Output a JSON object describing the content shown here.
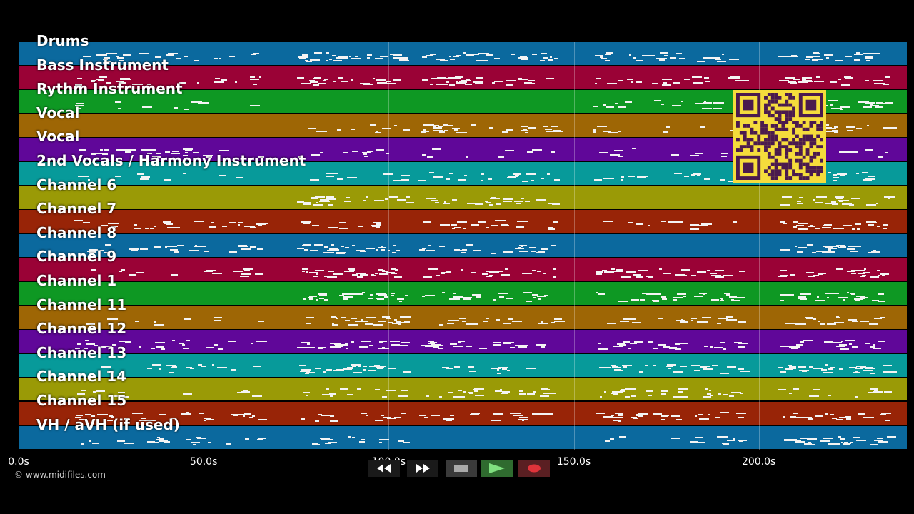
{
  "tracks": [
    {
      "name": "Drums",
      "color": "#0b699e"
    },
    {
      "name": "Bass Instrument",
      "color": "#9a0236"
    },
    {
      "name": "Rythm Instrument",
      "color": "#0e9823"
    },
    {
      "name": "Vocal",
      "color": "#9e6605"
    },
    {
      "name": "Vocal",
      "color": "#600799"
    },
    {
      "name": "2nd Vocals / Harmony Instrument",
      "color": "#079a9a"
    },
    {
      "name": "Channel 6",
      "color": "#9a9a06"
    },
    {
      "name": "Channel 7",
      "color": "#982407"
    },
    {
      "name": "Channel 8",
      "color": "#0b699e"
    },
    {
      "name": "Channel 9",
      "color": "#9a0236"
    },
    {
      "name": "Channel 1",
      "color": "#0e9823"
    },
    {
      "name": "Channel 11",
      "color": "#9e6605"
    },
    {
      "name": "Channel 12",
      "color": "#600799"
    },
    {
      "name": "Channel 13",
      "color": "#079a9a"
    },
    {
      "name": "Channel 14",
      "color": "#9a9a06"
    },
    {
      "name": "Channel 15",
      "color": "#982407"
    },
    {
      "name": "VH / aVH (if used)",
      "color": "#0b699e"
    }
  ],
  "timeline": {
    "ticks": [
      "0.0s",
      "50.0s",
      "100.0s",
      "150.0s",
      "200.0s"
    ],
    "tick_values": [
      0,
      50,
      100,
      150,
      200
    ],
    "end_seconds": 240
  },
  "copyright": "© www.midifiles.com",
  "transport": {
    "rewind": "rewind-icon",
    "forward": "fast-forward-icon",
    "stop": "stop-icon",
    "play": "play-icon",
    "record": "record-icon"
  },
  "qr_code": {
    "color": "#f5dc3c",
    "ink": "#4a1a4e"
  }
}
